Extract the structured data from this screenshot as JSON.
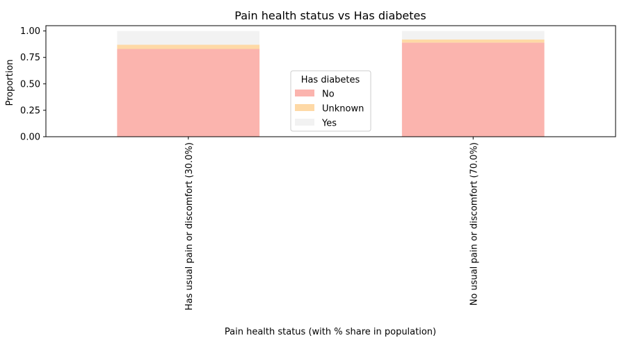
{
  "chart_data": {
    "type": "bar",
    "stacked": true,
    "title": "Pain health status vs Has diabetes",
    "xlabel": "Pain health status (with % share in population)",
    "ylabel": "Proportion",
    "ylim": [
      0,
      1.05
    ],
    "yticks": [
      "0.00",
      "0.25",
      "0.50",
      "0.75",
      "1.00"
    ],
    "categories": [
      "Has usual pain or discomfort (30.0%)",
      "No usual pain or discomfort (70.0%)"
    ],
    "legend": {
      "title": "Has diabetes",
      "placement": "center"
    },
    "series": [
      {
        "name": "No",
        "color": "#fbb4ae",
        "values": [
          0.83,
          0.89
        ]
      },
      {
        "name": "Unknown",
        "color": "#fed9a6",
        "values": [
          0.04,
          0.03
        ]
      },
      {
        "name": "Yes",
        "color": "#f2f2f2",
        "values": [
          0.13,
          0.08
        ]
      }
    ]
  }
}
